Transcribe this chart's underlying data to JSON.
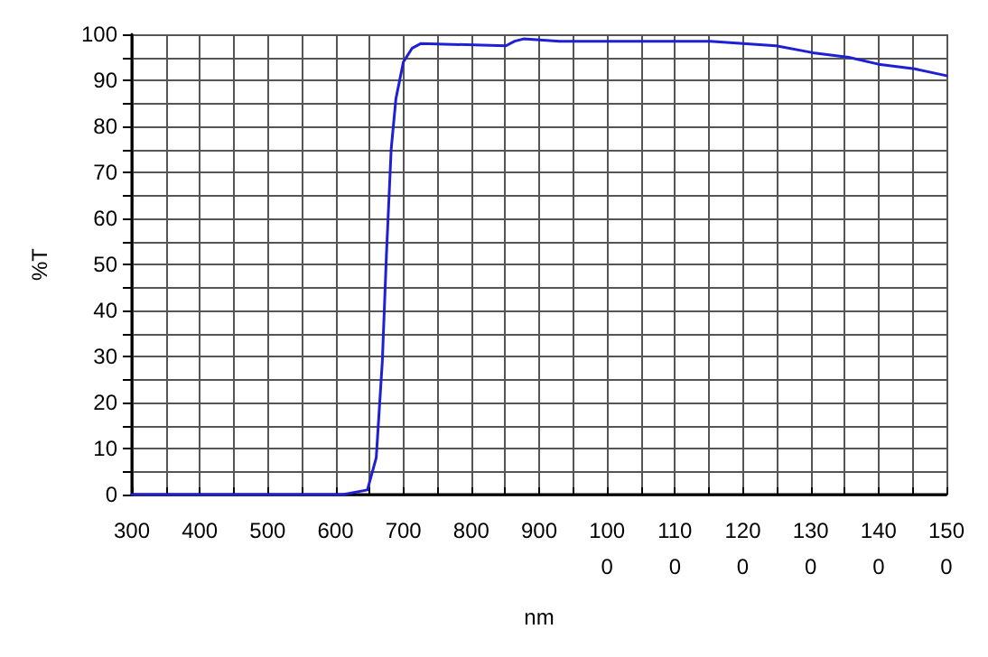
{
  "chart_data": {
    "type": "line",
    "xlabel": "nm",
    "ylabel": "%T",
    "x": [
      300,
      611,
      647,
      660,
      669,
      675,
      682,
      689,
      700,
      713,
      726,
      851,
      864,
      877,
      930,
      1152,
      1249,
      1303,
      1356,
      1400,
      1453,
      1500
    ],
    "series": [
      {
        "color": "#1f1fd6",
        "values": [
          0,
          0,
          1,
          8,
          29,
          52,
          75,
          86,
          94,
          97,
          98,
          97.5,
          98.5,
          99,
          98.5,
          98.5,
          97.5,
          96,
          95,
          93.5,
          92.5,
          91
        ]
      }
    ],
    "xlim": [
      300,
      1500
    ],
    "ylim": [
      0,
      100
    ],
    "xticks": [
      300,
      {
        "value": 350,
        "label": null
      },
      400,
      {
        "value": 450,
        "label": null
      },
      500,
      {
        "value": 550,
        "label": null
      },
      600,
      {
        "value": 650,
        "label": null
      },
      700,
      {
        "value": 750,
        "label": null
      },
      800,
      {
        "value": 850,
        "label": null
      },
      900,
      {
        "value": 950,
        "label": null
      },
      1000,
      {
        "value": 1050,
        "label": null
      },
      1100,
      {
        "value": 1150,
        "label": null
      },
      1200,
      {
        "value": 1250,
        "label": null
      },
      1300,
      {
        "value": 1350,
        "label": null
      },
      1400,
      {
        "value": 1450,
        "label": null
      },
      1500
    ],
    "yticks": [
      0,
      {
        "value": 5,
        "label": null
      },
      10,
      {
        "value": 15,
        "label": null
      },
      20,
      {
        "value": 25,
        "label": null
      },
      30,
      {
        "value": 35,
        "label": null
      },
      40,
      {
        "value": 45,
        "label": null
      },
      50,
      {
        "value": 55,
        "label": null
      },
      60,
      {
        "value": 65,
        "label": null
      },
      70,
      {
        "value": 75,
        "label": null
      },
      80,
      {
        "value": 85,
        "label": null
      },
      90,
      {
        "value": 95,
        "label": null
      },
      100
    ],
    "grid": true,
    "marker": "none",
    "line_style": "solid"
  }
}
